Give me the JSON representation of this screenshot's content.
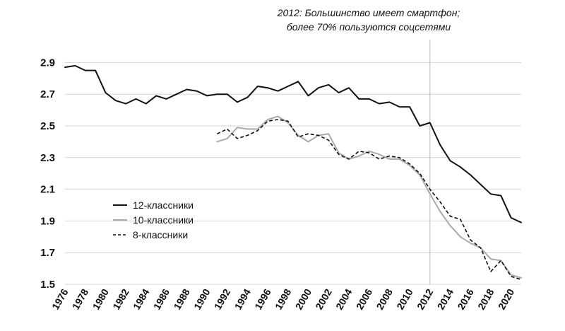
{
  "chart_data": {
    "type": "line",
    "title": "",
    "xlabel": "",
    "ylabel": "",
    "annotation": {
      "line1": "2012: Большинство имеет смартфон;",
      "line2": "более 70% пользуются соцсетями",
      "x": 2012
    },
    "xlim": [
      1976,
      2021
    ],
    "ylim": [
      1.5,
      3.0
    ],
    "yticks": [
      "1.5",
      "1.7",
      "1.9",
      "2.1",
      "2.3",
      "2.5",
      "2.7",
      "2.9"
    ],
    "xticks": [
      "1976",
      "1978",
      "1980",
      "1982",
      "1984",
      "1986",
      "1988",
      "1990",
      "1992",
      "1994",
      "1996",
      "1998",
      "2000",
      "2002",
      "2004",
      "2006",
      "2008",
      "2010",
      "2012",
      "2014",
      "2016",
      "2018",
      "2020"
    ],
    "grid": "horizontal",
    "legend_position": "lower-left",
    "series": [
      {
        "name": "12-классники",
        "color": "#111111",
        "style": "solid",
        "x": [
          1976,
          1977,
          1978,
          1979,
          1980,
          1981,
          1982,
          1983,
          1984,
          1985,
          1986,
          1987,
          1988,
          1989,
          1990,
          1991,
          1992,
          1993,
          1994,
          1995,
          1996,
          1997,
          1998,
          1999,
          2000,
          2001,
          2002,
          2003,
          2004,
          2005,
          2006,
          2007,
          2008,
          2009,
          2010,
          2011,
          2012,
          2013,
          2014,
          2015,
          2016,
          2017,
          2018,
          2019,
          2020,
          2021
        ],
        "y": [
          2.87,
          2.88,
          2.85,
          2.85,
          2.71,
          2.66,
          2.64,
          2.67,
          2.64,
          2.69,
          2.67,
          2.7,
          2.73,
          2.72,
          2.69,
          2.7,
          2.7,
          2.65,
          2.68,
          2.75,
          2.74,
          2.72,
          2.75,
          2.78,
          2.69,
          2.74,
          2.76,
          2.71,
          2.74,
          2.67,
          2.67,
          2.64,
          2.65,
          2.62,
          2.62,
          2.5,
          2.52,
          2.38,
          2.28,
          2.24,
          2.19,
          2.13,
          2.07,
          2.06,
          1.92,
          1.89
        ]
      },
      {
        "name": "10-классники",
        "color": "#aaaaaa",
        "style": "solid",
        "x": [
          1991,
          1992,
          1993,
          1994,
          1995,
          1996,
          1997,
          1998,
          1999,
          2000,
          2001,
          2002,
          2003,
          2004,
          2005,
          2006,
          2007,
          2008,
          2009,
          2010,
          2011,
          2012,
          2013,
          2014,
          2015,
          2016,
          2017,
          2018,
          2019,
          2020,
          2021
        ],
        "y": [
          2.4,
          2.42,
          2.49,
          2.48,
          2.48,
          2.54,
          2.56,
          2.52,
          2.44,
          2.4,
          2.44,
          2.45,
          2.33,
          2.29,
          2.31,
          2.34,
          2.32,
          2.29,
          2.29,
          2.25,
          2.19,
          2.07,
          1.96,
          1.87,
          1.8,
          1.76,
          1.73,
          1.66,
          1.65,
          1.56,
          1.54
        ]
      },
      {
        "name": "8-классники",
        "color": "#111111",
        "style": "dashed",
        "x": [
          1991,
          1992,
          1993,
          1994,
          1995,
          1996,
          1997,
          1998,
          1999,
          2000,
          2001,
          2002,
          2003,
          2004,
          2005,
          2006,
          2007,
          2008,
          2009,
          2010,
          2011,
          2012,
          2013,
          2014,
          2015,
          2016,
          2017,
          2018,
          2019,
          2020,
          2021
        ],
        "y": [
          2.45,
          2.48,
          2.42,
          2.44,
          2.47,
          2.53,
          2.54,
          2.53,
          2.43,
          2.45,
          2.44,
          2.41,
          2.32,
          2.29,
          2.34,
          2.33,
          2.29,
          2.31,
          2.3,
          2.26,
          2.2,
          2.1,
          2.02,
          1.93,
          1.91,
          1.78,
          1.73,
          1.58,
          1.65,
          1.55,
          1.53
        ]
      }
    ]
  }
}
